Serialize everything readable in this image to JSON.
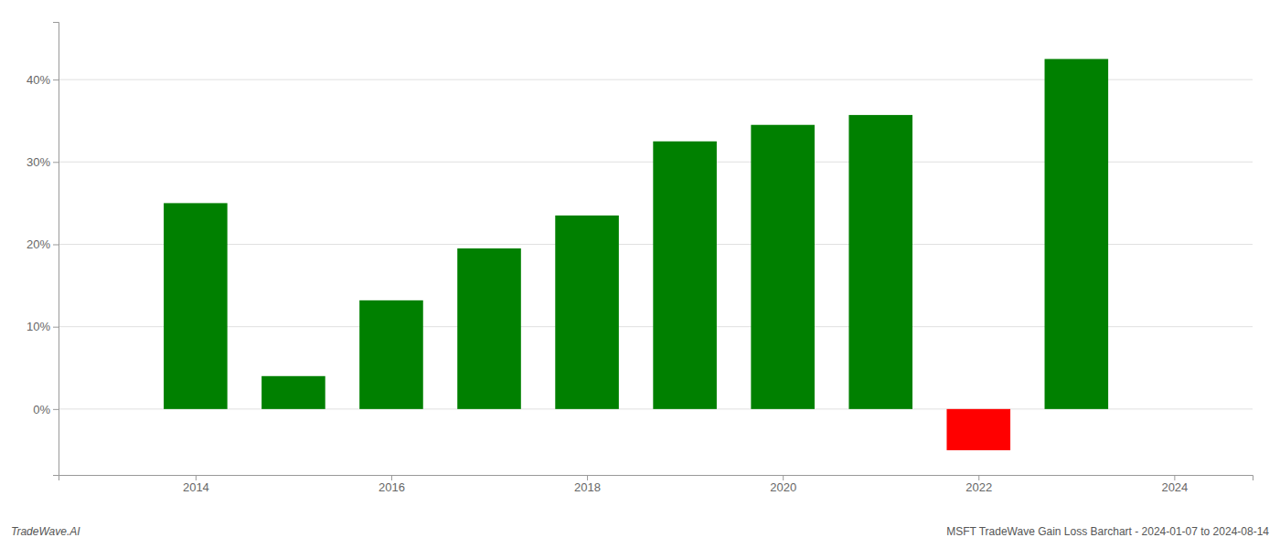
{
  "chart_data": {
    "type": "bar",
    "x": [
      2014,
      2015,
      2016,
      2017,
      2018,
      2019,
      2020,
      2021,
      2022,
      2023
    ],
    "values": [
      25.0,
      4.0,
      13.2,
      19.5,
      23.5,
      32.5,
      34.5,
      35.7,
      -5.0,
      42.5
    ],
    "colors": [
      "#008000",
      "#008000",
      "#008000",
      "#008000",
      "#008000",
      "#008000",
      "#008000",
      "#008000",
      "#ff0000",
      "#008000"
    ],
    "xlim": [
      2012.6,
      2024.8
    ],
    "xticks": [
      2014,
      2016,
      2018,
      2020,
      2022,
      2024
    ],
    "ylim": [
      -8,
      47
    ],
    "yticks": [
      {
        "value": 0,
        "label": "0%"
      },
      {
        "value": 10,
        "label": "10%"
      },
      {
        "value": 20,
        "label": "20%"
      },
      {
        "value": 30,
        "label": "30%"
      },
      {
        "value": 40,
        "label": "40%"
      }
    ],
    "grid": true,
    "annotations": [
      "TradeWave.AI",
      "MSFT TradeWave Gain Loss Barchart - 2024-01-07 to 2024-08-14"
    ]
  }
}
